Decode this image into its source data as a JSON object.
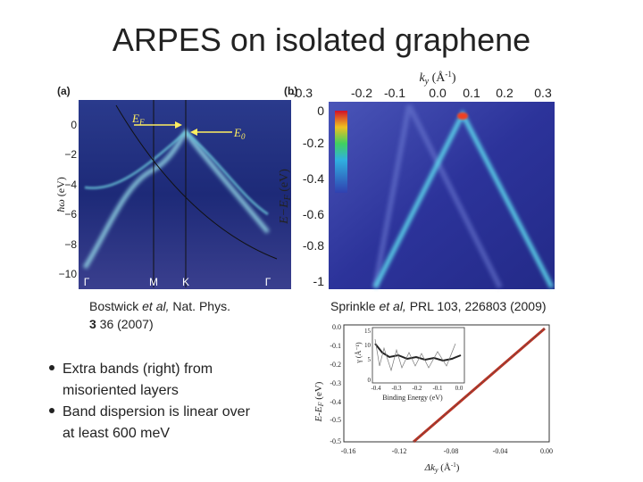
{
  "title": "ARPES on isolated graphene",
  "figure_a": {
    "panel": "(a)",
    "ylabel": {
      "main": "ħω",
      "unit": "(eV)"
    },
    "yticks": [
      "0",
      "−2",
      "−4",
      "−6",
      "−8",
      "−10"
    ],
    "xticks": [
      "Γ",
      "M",
      "K",
      "Γ"
    ],
    "ef_label": {
      "main": "E",
      "sub": "F"
    },
    "e0_label": {
      "main": "E",
      "sub": "0"
    }
  },
  "figure_b": {
    "panel": "(b)",
    "xlabel": {
      "main": "k",
      "sub": "y",
      "unit": "(Å",
      "sup": "-1",
      "close": ")"
    },
    "xticks": [
      "-0.3",
      "-0.2",
      "-0.1",
      "0.0",
      "0.1",
      "0.2",
      "0.3"
    ],
    "ylabel": {
      "main": "E−E",
      "sub": "F",
      "unit": "(eV)"
    },
    "yticks": [
      "0",
      "-0.2",
      "-0.4",
      "-0.6",
      "-0.8",
      "-1"
    ]
  },
  "caption_a": {
    "line1_pre": "Bostwick ",
    "line1_italic": "et al,",
    "line1_post": " Nat. Phys.",
    "line2_bold": "3",
    "line2_post": " 36 (2007)"
  },
  "caption_b": {
    "pre": "Sprinkle ",
    "italic": "et al,",
    "post": " PRL 103, 226803 (2009)"
  },
  "bullets": [
    {
      "line1": "Extra bands (right) from",
      "line2": "misoriented layers"
    },
    {
      "line1": "Band dispersion is linear over",
      "line2": "at least 600 meV"
    }
  ],
  "figure_c": {
    "ylabel": {
      "main": "E-E",
      "sub": "F",
      "unit": " (eV)"
    },
    "yticks": [
      "0.0",
      "-0.1",
      "-0.2",
      "-0.3",
      "-0.4",
      "-0.5",
      "-0.5"
    ],
    "xticks": [
      "-0.16",
      "-0.12",
      "-0.08",
      "-0.04",
      "0.00"
    ],
    "xlabel": {
      "main": "Δk",
      "sub": "y",
      "unit": " (Å",
      "sup": "-1",
      "close": ")"
    },
    "inset": {
      "ylabel": "γ (Å⁻¹)",
      "yticks": [
        "15",
        "10",
        "5",
        "0"
      ],
      "xticks": [
        "-0.4",
        "-0.3",
        "-0.2",
        "-0.1",
        "0.0"
      ],
      "xlabel": "Binding Energy (eV)"
    }
  }
}
